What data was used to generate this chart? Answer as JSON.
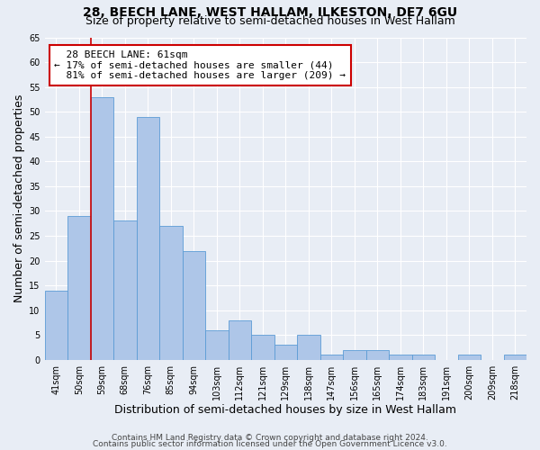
{
  "title1": "28, BEECH LANE, WEST HALLAM, ILKESTON, DE7 6GU",
  "title2": "Size of property relative to semi-detached houses in West Hallam",
  "xlabel": "Distribution of semi-detached houses by size in West Hallam",
  "ylabel": "Number of semi-detached properties",
  "footer1": "Contains HM Land Registry data © Crown copyright and database right 2024.",
  "footer2": "Contains public sector information licensed under the Open Government Licence v3.0.",
  "bar_labels": [
    "41sqm",
    "50sqm",
    "59sqm",
    "68sqm",
    "76sqm",
    "85sqm",
    "94sqm",
    "103sqm",
    "112sqm",
    "121sqm",
    "129sqm",
    "138sqm",
    "147sqm",
    "156sqm",
    "165sqm",
    "174sqm",
    "183sqm",
    "191sqm",
    "200sqm",
    "209sqm",
    "218sqm"
  ],
  "bar_values": [
    14,
    29,
    53,
    28,
    49,
    27,
    22,
    6,
    8,
    5,
    3,
    5,
    1,
    2,
    2,
    1,
    1,
    0,
    1,
    0,
    1
  ],
  "bar_color": "#aec6e8",
  "bar_edge_color": "#5b9bd5",
  "property_label": "28 BEECH LANE: 61sqm",
  "pct_smaller": 17,
  "n_smaller": 44,
  "pct_larger": 81,
  "n_larger": 209,
  "vline_color": "#cc0000",
  "annotation_box_color": "#cc0000",
  "ylim": [
    0,
    65
  ],
  "yticks": [
    0,
    5,
    10,
    15,
    20,
    25,
    30,
    35,
    40,
    45,
    50,
    55,
    60,
    65
  ],
  "bg_color": "#e8edf5",
  "plot_bg_color": "#e8edf5",
  "grid_color": "#ffffff",
  "title1_fontsize": 10,
  "title2_fontsize": 9,
  "annotation_fontsize": 8,
  "axis_label_fontsize": 9,
  "tick_fontsize": 7,
  "footer_fontsize": 6.5
}
